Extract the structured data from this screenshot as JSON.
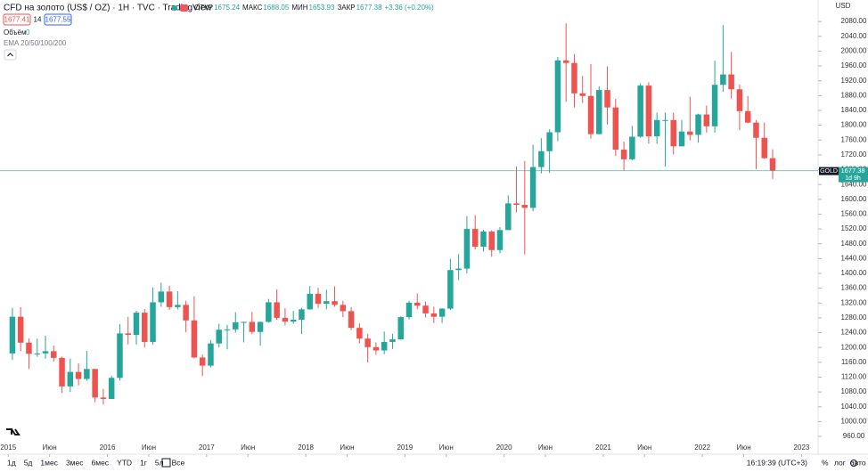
{
  "header": {
    "symbol": "CFD на золото (US$ / OZ) · 1H · TVC · TradingView",
    "ohlc": [
      {
        "label": "ОТКР",
        "value": 1675.24
      },
      {
        "label": "МАКС",
        "value": 1688.05
      },
      {
        "label": "МИН",
        "value": 1653.93
      },
      {
        "label": "ЗАКР",
        "value": 1677.38
      }
    ],
    "change": "+3.36 (+0.20%)",
    "bid": 1677.41,
    "spread": 14,
    "ask": 1677.55,
    "volume_label": "Объём",
    "volume": 0,
    "ema": "EMA 20/50/100/200",
    "currency": "USD"
  },
  "chart_data": {
    "type": "candlestick",
    "up_color": "#26a69a",
    "down_color": "#ef5350",
    "x": [
      "2015-01",
      "2015-02",
      "2015-03",
      "2015-04",
      "2015-05",
      "2015-06",
      "2015-07",
      "2015-08",
      "2015-09",
      "2015-10",
      "2015-11",
      "2015-12",
      "2016-01",
      "2016-02",
      "2016-03",
      "2016-04",
      "2016-05",
      "2016-06",
      "2016-07",
      "2016-08",
      "2016-09",
      "2016-10",
      "2016-11",
      "2016-12",
      "2017-01",
      "2017-02",
      "2017-03",
      "2017-04",
      "2017-05",
      "2017-06",
      "2017-07",
      "2017-08",
      "2017-09",
      "2017-10",
      "2017-11",
      "2017-12",
      "2018-01",
      "2018-02",
      "2018-03",
      "2018-04",
      "2018-05",
      "2018-06",
      "2018-07",
      "2018-08",
      "2018-09",
      "2018-10",
      "2018-11",
      "2018-12",
      "2019-01",
      "2019-02",
      "2019-03",
      "2019-04",
      "2019-05",
      "2019-06",
      "2019-07",
      "2019-08",
      "2019-09",
      "2019-10",
      "2019-11",
      "2019-12",
      "2020-01",
      "2020-02",
      "2020-03",
      "2020-04",
      "2020-05",
      "2020-06",
      "2020-07",
      "2020-08",
      "2020-09",
      "2020-10",
      "2020-11",
      "2020-12",
      "2021-01",
      "2021-02",
      "2021-03",
      "2021-04",
      "2021-05",
      "2021-06",
      "2021-07",
      "2021-08",
      "2021-09",
      "2021-10",
      "2021-11",
      "2021-12",
      "2022-01",
      "2022-02",
      "2022-03",
      "2022-04",
      "2022-05",
      "2022-06",
      "2022-07",
      "2022-08",
      "2022-09"
    ],
    "open": [
      1184,
      1283,
      1213,
      1183,
      1184,
      1190,
      1172,
      1095,
      1134,
      1115,
      1142,
      1065,
      1061,
      1118,
      1238,
      1234,
      1294,
      1215,
      1322,
      1351,
      1309,
      1315,
      1273,
      1173,
      1151,
      1211,
      1248,
      1249,
      1268,
      1269,
      1242,
      1269,
      1322,
      1280,
      1270,
      1275,
      1303,
      1345,
      1318,
      1325,
      1315,
      1298,
      1253,
      1224,
      1201,
      1192,
      1215,
      1222,
      1282,
      1321,
      1313,
      1292,
      1283,
      1305,
      1409,
      1413,
      1520,
      1472,
      1513,
      1463,
      1517,
      1589,
      1585,
      1577,
      1687,
      1730,
      1781,
      1975,
      1968,
      1886,
      1879,
      1776,
      1895,
      1848,
      1734,
      1708,
      1769,
      1907,
      1770,
      1814,
      1814,
      1743,
      1783,
      1774,
      1829,
      1797,
      1909,
      1937,
      1897,
      1838,
      1807,
      1766,
      1711
    ],
    "high": [
      1307,
      1309,
      1224,
      1224,
      1232,
      1205,
      1175,
      1170,
      1157,
      1191,
      1142,
      1088,
      1124,
      1263,
      1283,
      1299,
      1304,
      1362,
      1375,
      1367,
      1352,
      1326,
      1338,
      1181,
      1220,
      1264,
      1261,
      1295,
      1270,
      1296,
      1270,
      1331,
      1357,
      1306,
      1299,
      1307,
      1366,
      1361,
      1356,
      1365,
      1326,
      1309,
      1265,
      1236,
      1214,
      1243,
      1237,
      1284,
      1326,
      1346,
      1324,
      1310,
      1306,
      1439,
      1452,
      1555,
      1557,
      1518,
      1517,
      1525,
      1611,
      1689,
      1703,
      1747,
      1765,
      1789,
      1984,
      2075,
      1992,
      1933,
      1965,
      1905,
      1959,
      1871,
      1756,
      1798,
      1913,
      1916,
      1834,
      1834,
      1834,
      1814,
      1877,
      1831,
      1853,
      1974,
      2070,
      1998,
      1910,
      1879,
      1814,
      1807,
      1735
    ],
    "low": [
      1167,
      1190,
      1142,
      1175,
      1170,
      1162,
      1077,
      1080,
      1098,
      1110,
      1052,
      1046,
      1062,
      1111,
      1208,
      1208,
      1200,
      1208,
      1310,
      1301,
      1303,
      1241,
      1171,
      1123,
      1146,
      1200,
      1195,
      1240,
      1214,
      1236,
      1205,
      1267,
      1274,
      1260,
      1264,
      1236,
      1302,
      1307,
      1303,
      1310,
      1282,
      1247,
      1211,
      1160,
      1180,
      1182,
      1196,
      1221,
      1276,
      1303,
      1281,
      1266,
      1266,
      1301,
      1382,
      1400,
      1465,
      1459,
      1445,
      1454,
      1517,
      1565,
      1451,
      1568,
      1670,
      1671,
      1757,
      1863,
      1848,
      1860,
      1764,
      1776,
      1802,
      1717,
      1677,
      1705,
      1766,
      1750,
      1750,
      1688,
      1721,
      1746,
      1759,
      1753,
      1780,
      1780,
      1890,
      1872,
      1787,
      1805,
      1681,
      1709,
      1655
    ],
    "close": [
      1283,
      1213,
      1183,
      1184,
      1190,
      1172,
      1095,
      1134,
      1115,
      1142,
      1065,
      1061,
      1118,
      1238,
      1234,
      1294,
      1215,
      1322,
      1351,
      1309,
      1315,
      1273,
      1173,
      1151,
      1211,
      1248,
      1249,
      1268,
      1269,
      1242,
      1269,
      1322,
      1280,
      1270,
      1275,
      1303,
      1345,
      1318,
      1325,
      1315,
      1298,
      1253,
      1224,
      1201,
      1192,
      1215,
      1222,
      1282,
      1321,
      1313,
      1292,
      1283,
      1305,
      1409,
      1413,
      1520,
      1472,
      1513,
      1463,
      1517,
      1589,
      1585,
      1577,
      1687,
      1730,
      1781,
      1975,
      1968,
      1886,
      1879,
      1776,
      1895,
      1848,
      1734,
      1708,
      1769,
      1907,
      1770,
      1814,
      1814,
      1743,
      1783,
      1774,
      1829,
      1797,
      1909,
      1937,
      1897,
      1838,
      1807,
      1766,
      1711,
      1677.38
    ],
    "xlim": [
      "2014-12",
      "2023-03"
    ],
    "xticks": [
      {
        "value": "2015-01",
        "label": "2015"
      },
      {
        "value": "2015-06",
        "label": "Июн"
      },
      {
        "value": "2016-01",
        "label": "2016"
      },
      {
        "value": "2016-06",
        "label": "Июн"
      },
      {
        "value": "2017-01",
        "label": "2017"
      },
      {
        "value": "2017-06",
        "label": "Июн"
      },
      {
        "value": "2018-01",
        "label": "2018"
      },
      {
        "value": "2018-06",
        "label": "Июн"
      },
      {
        "value": "2019-01",
        "label": "2019"
      },
      {
        "value": "2019-06",
        "label": "Июн"
      },
      {
        "value": "2020-01",
        "label": "2020"
      },
      {
        "value": "2020-06",
        "label": "Июн"
      },
      {
        "value": "2021-01",
        "label": "2021"
      },
      {
        "value": "2021-06",
        "label": "Июн"
      },
      {
        "value": "2022-01",
        "label": "2022"
      },
      {
        "value": "2022-06",
        "label": "Июн"
      },
      {
        "value": "2023-01",
        "label": "2023"
      }
    ],
    "ylim": [
      912,
      2138
    ],
    "yticks": [
      {
        "value": 960,
        "label": "960.00"
      },
      {
        "value": 1000,
        "label": "1000.00"
      },
      {
        "value": 1040,
        "label": "1040.00"
      },
      {
        "value": 1080,
        "label": "1080.00"
      },
      {
        "value": 1120,
        "label": "1120.00"
      },
      {
        "value": 1160,
        "label": "1160.00"
      },
      {
        "value": 1200,
        "label": "1200.00"
      },
      {
        "value": 1240,
        "label": "1240.00"
      },
      {
        "value": 1280,
        "label": "1280.00"
      },
      {
        "value": 1320,
        "label": "1320.00"
      },
      {
        "value": 1360,
        "label": "1360.00"
      },
      {
        "value": 1400,
        "label": "1400.00"
      },
      {
        "value": 1440,
        "label": "1440.00"
      },
      {
        "value": 1480,
        "label": "1480.00"
      },
      {
        "value": 1520,
        "label": "1520.00"
      },
      {
        "value": 1560,
        "label": "1560.00"
      },
      {
        "value": 1600,
        "label": "1600.00"
      },
      {
        "value": 1640,
        "label": "1640.00"
      },
      {
        "value": 1680,
        "label": "1680.00"
      },
      {
        "value": 1720,
        "label": "1720.00"
      },
      {
        "value": 1760,
        "label": "1760.00"
      },
      {
        "value": 1800,
        "label": "1800.00"
      },
      {
        "value": 1840,
        "label": "1840.00"
      },
      {
        "value": 1880,
        "label": "1880.00"
      },
      {
        "value": 1920,
        "label": "1920.00"
      },
      {
        "value": 1960,
        "label": "1960.00"
      },
      {
        "value": 2000,
        "label": "2000.00"
      },
      {
        "value": 2040,
        "label": "2040.00"
      },
      {
        "value": 2080,
        "label": "2080.00"
      }
    ],
    "grid": false,
    "last_price": {
      "symbol": "GOLD",
      "value": 1677.38,
      "countdown": "1d 9h"
    }
  },
  "footer": {
    "ranges": [
      "1д",
      "5д",
      "1мес",
      "3мес",
      "6мес",
      "YTD",
      "1г",
      "5л",
      "Все"
    ],
    "time": "16:19:39 (UTC+3)",
    "options": [
      "%",
      "лог",
      "авто"
    ]
  }
}
